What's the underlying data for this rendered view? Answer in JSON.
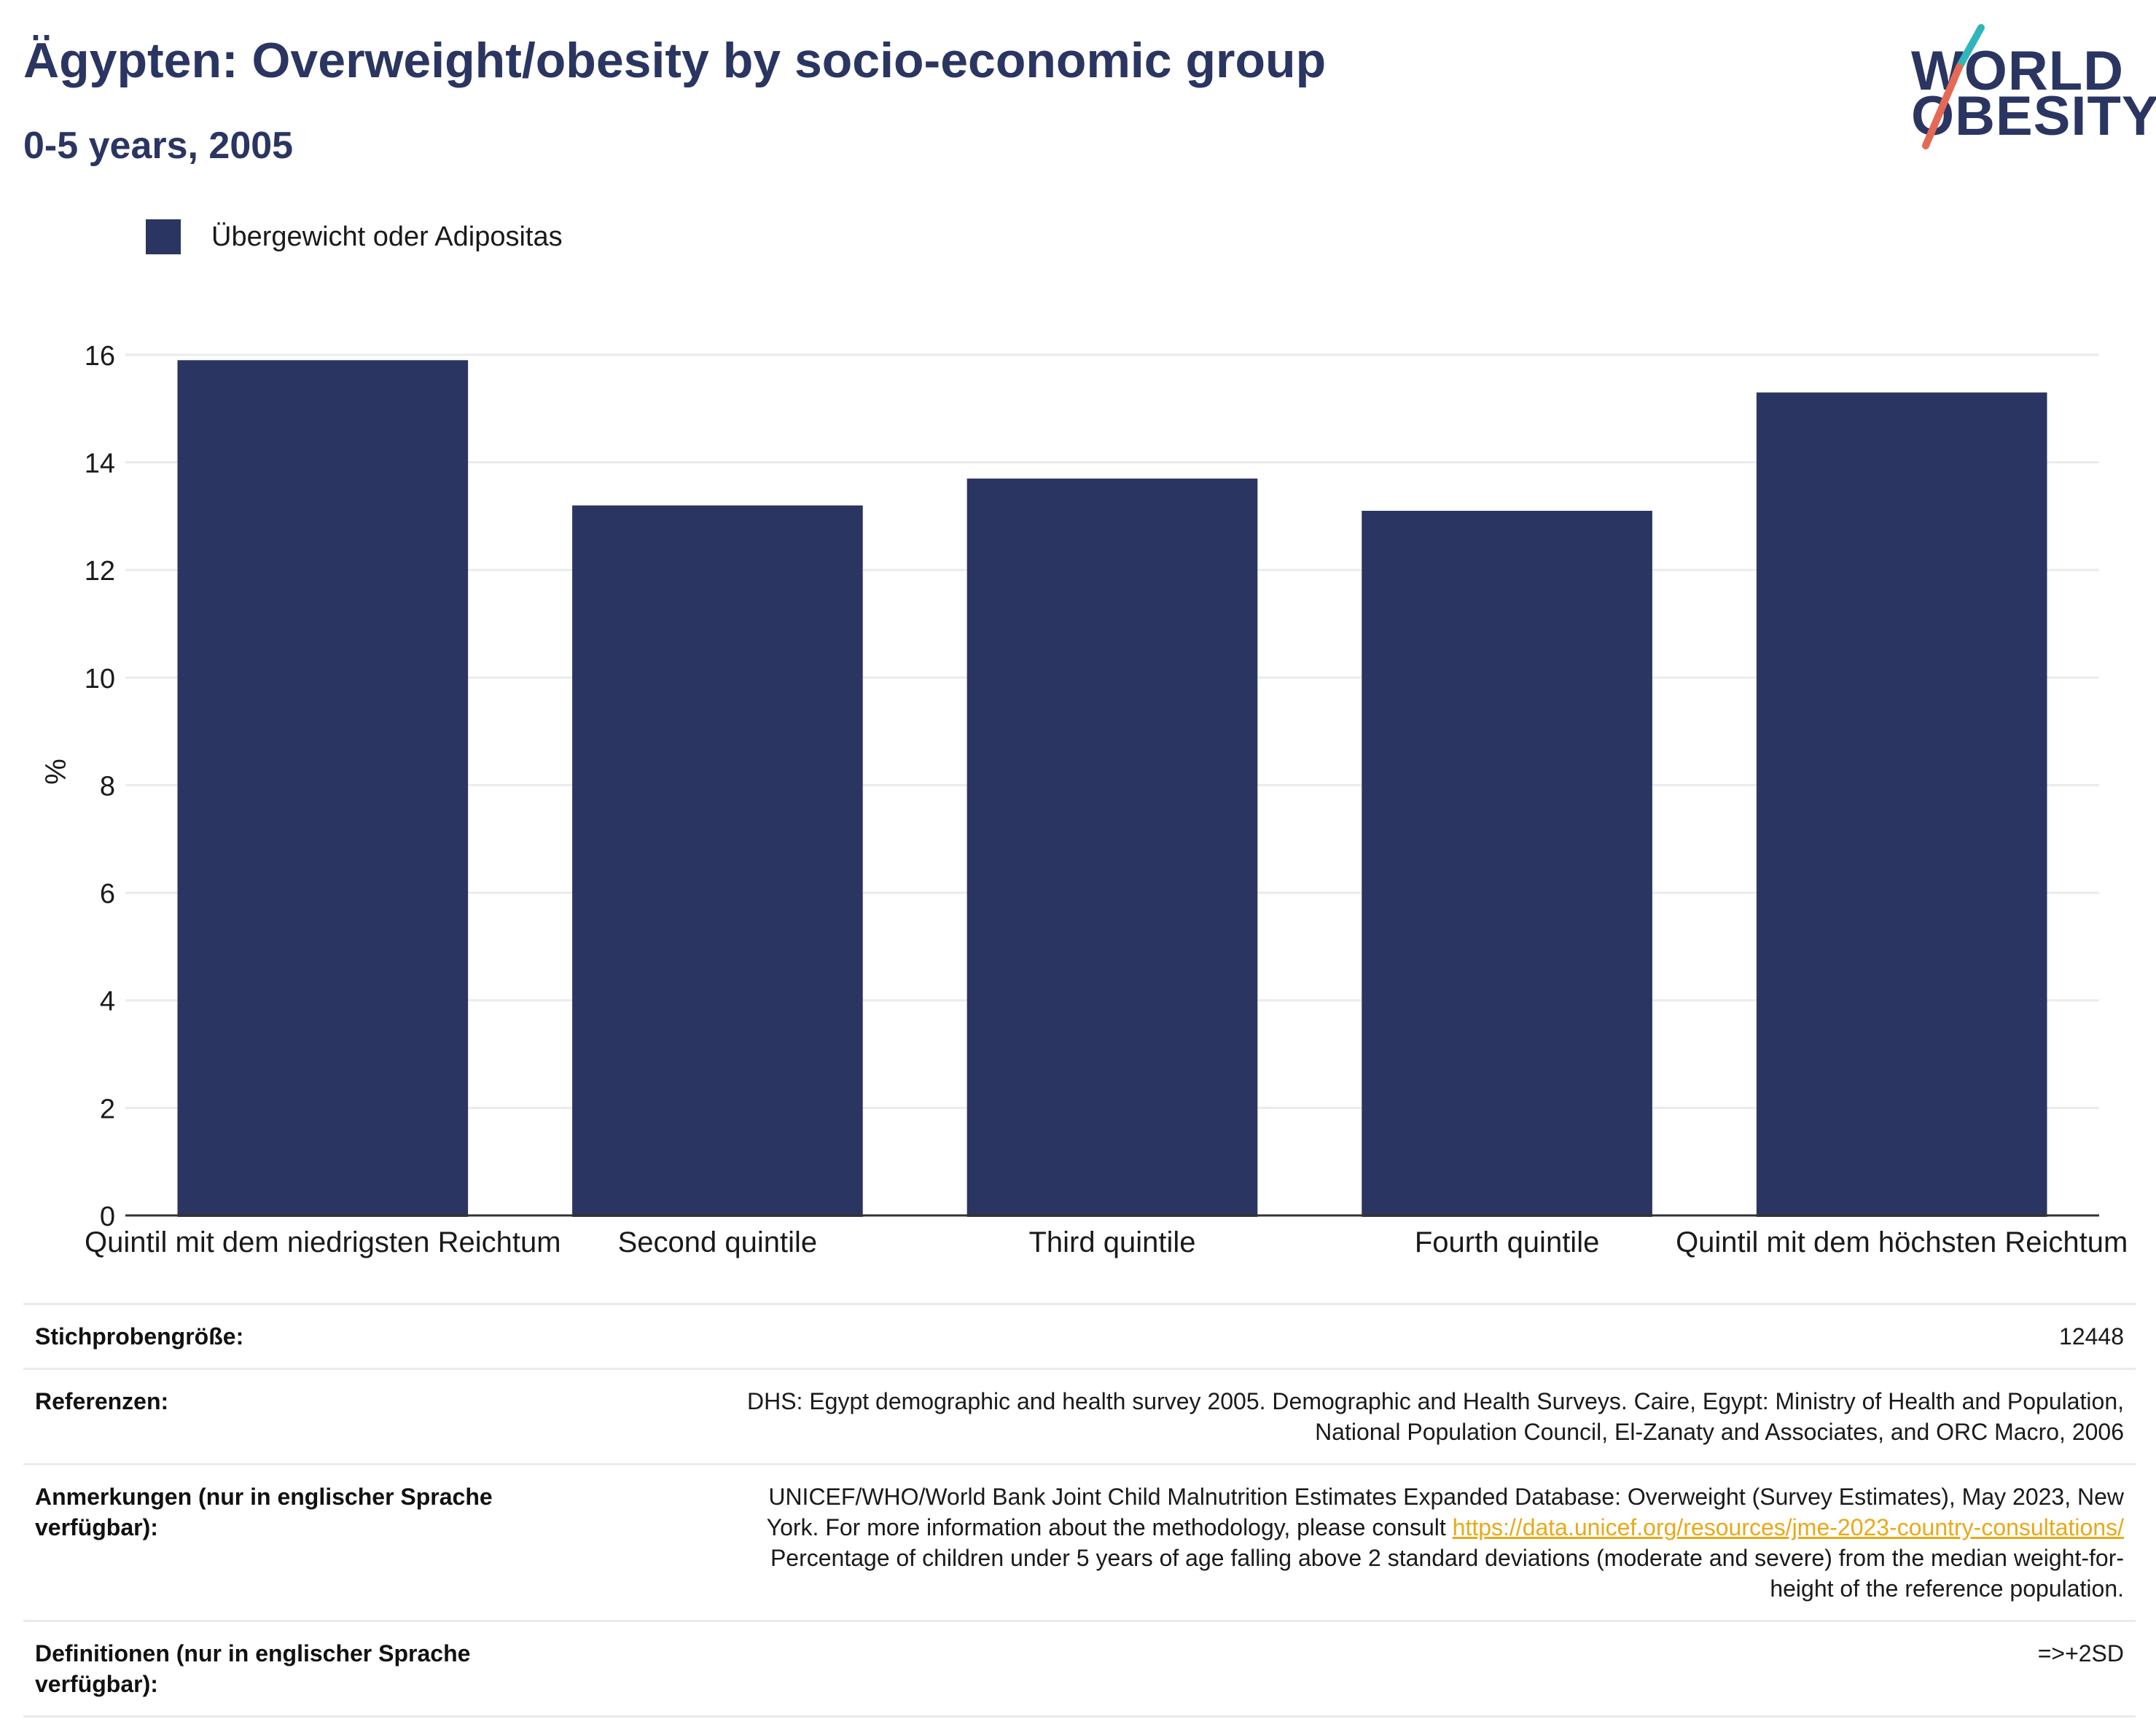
{
  "header": {
    "title": "Ägypten: Overweight/obesity by socio-economic group",
    "subtitle": "0-5 years, 2005"
  },
  "logo": {
    "line1": "WORLD",
    "line2": "OBESITY",
    "colors": {
      "navy": "#2a3561",
      "teal": "#2fb6bb",
      "coral": "#e56a55"
    }
  },
  "legend": {
    "label": "Übergewicht oder Adipositas",
    "color": "#2a3561"
  },
  "chart_data": {
    "type": "bar",
    "categories": [
      "Quintil mit dem niedrigsten Reichtum",
      "Second quintile",
      "Third quintile",
      "Fourth quintile",
      "Quintil mit dem höchsten Reichtum"
    ],
    "series": [
      {
        "name": "Übergewicht oder Adipositas",
        "values": [
          15.9,
          13.2,
          13.7,
          13.1,
          15.3
        ],
        "color": "#2a3561"
      }
    ],
    "ylabel": "%",
    "xlabel": "",
    "ylim": [
      0,
      16.5
    ],
    "yticks": [
      0,
      2,
      4,
      6,
      8,
      10,
      12,
      14,
      16
    ],
    "grid": true,
    "legend_position": "top-left"
  },
  "info": {
    "sample_size_label": "Stichprobengröße:",
    "sample_size_value": "12448",
    "references_label": "Referenzen:",
    "references_value_line1": "DHS: Egypt demographic and health survey 2005. Demographic and Health Surveys. Caire, Egypt: Ministry of Health and Population,",
    "references_value_line2": "National Population Council, El-Zanaty and Associates, and ORC Macro, 2006",
    "notes_label": "Anmerkungen (nur in englischer Sprache verfügbar):",
    "notes_value_line1": "UNICEF/WHO/World Bank Joint Child Malnutrition Estimates Expanded Database: Overweight (Survey Estimates), May 2023, New",
    "notes_value_line2_prefix": "York. For more information about the methodology, please consult ",
    "notes_link": "https://data.unicef.org/resources/jme-2023-country-consultations/",
    "notes_value_line3": "Percentage of children under 5 years of age falling above 2 standard deviations (moderate and severe) from the median weight-for-",
    "notes_value_line4": "height of the reference population.",
    "definitions_label": "Definitionen (nur in englischer Sprache verfügbar):",
    "definitions_value": "=>+2SD"
  }
}
